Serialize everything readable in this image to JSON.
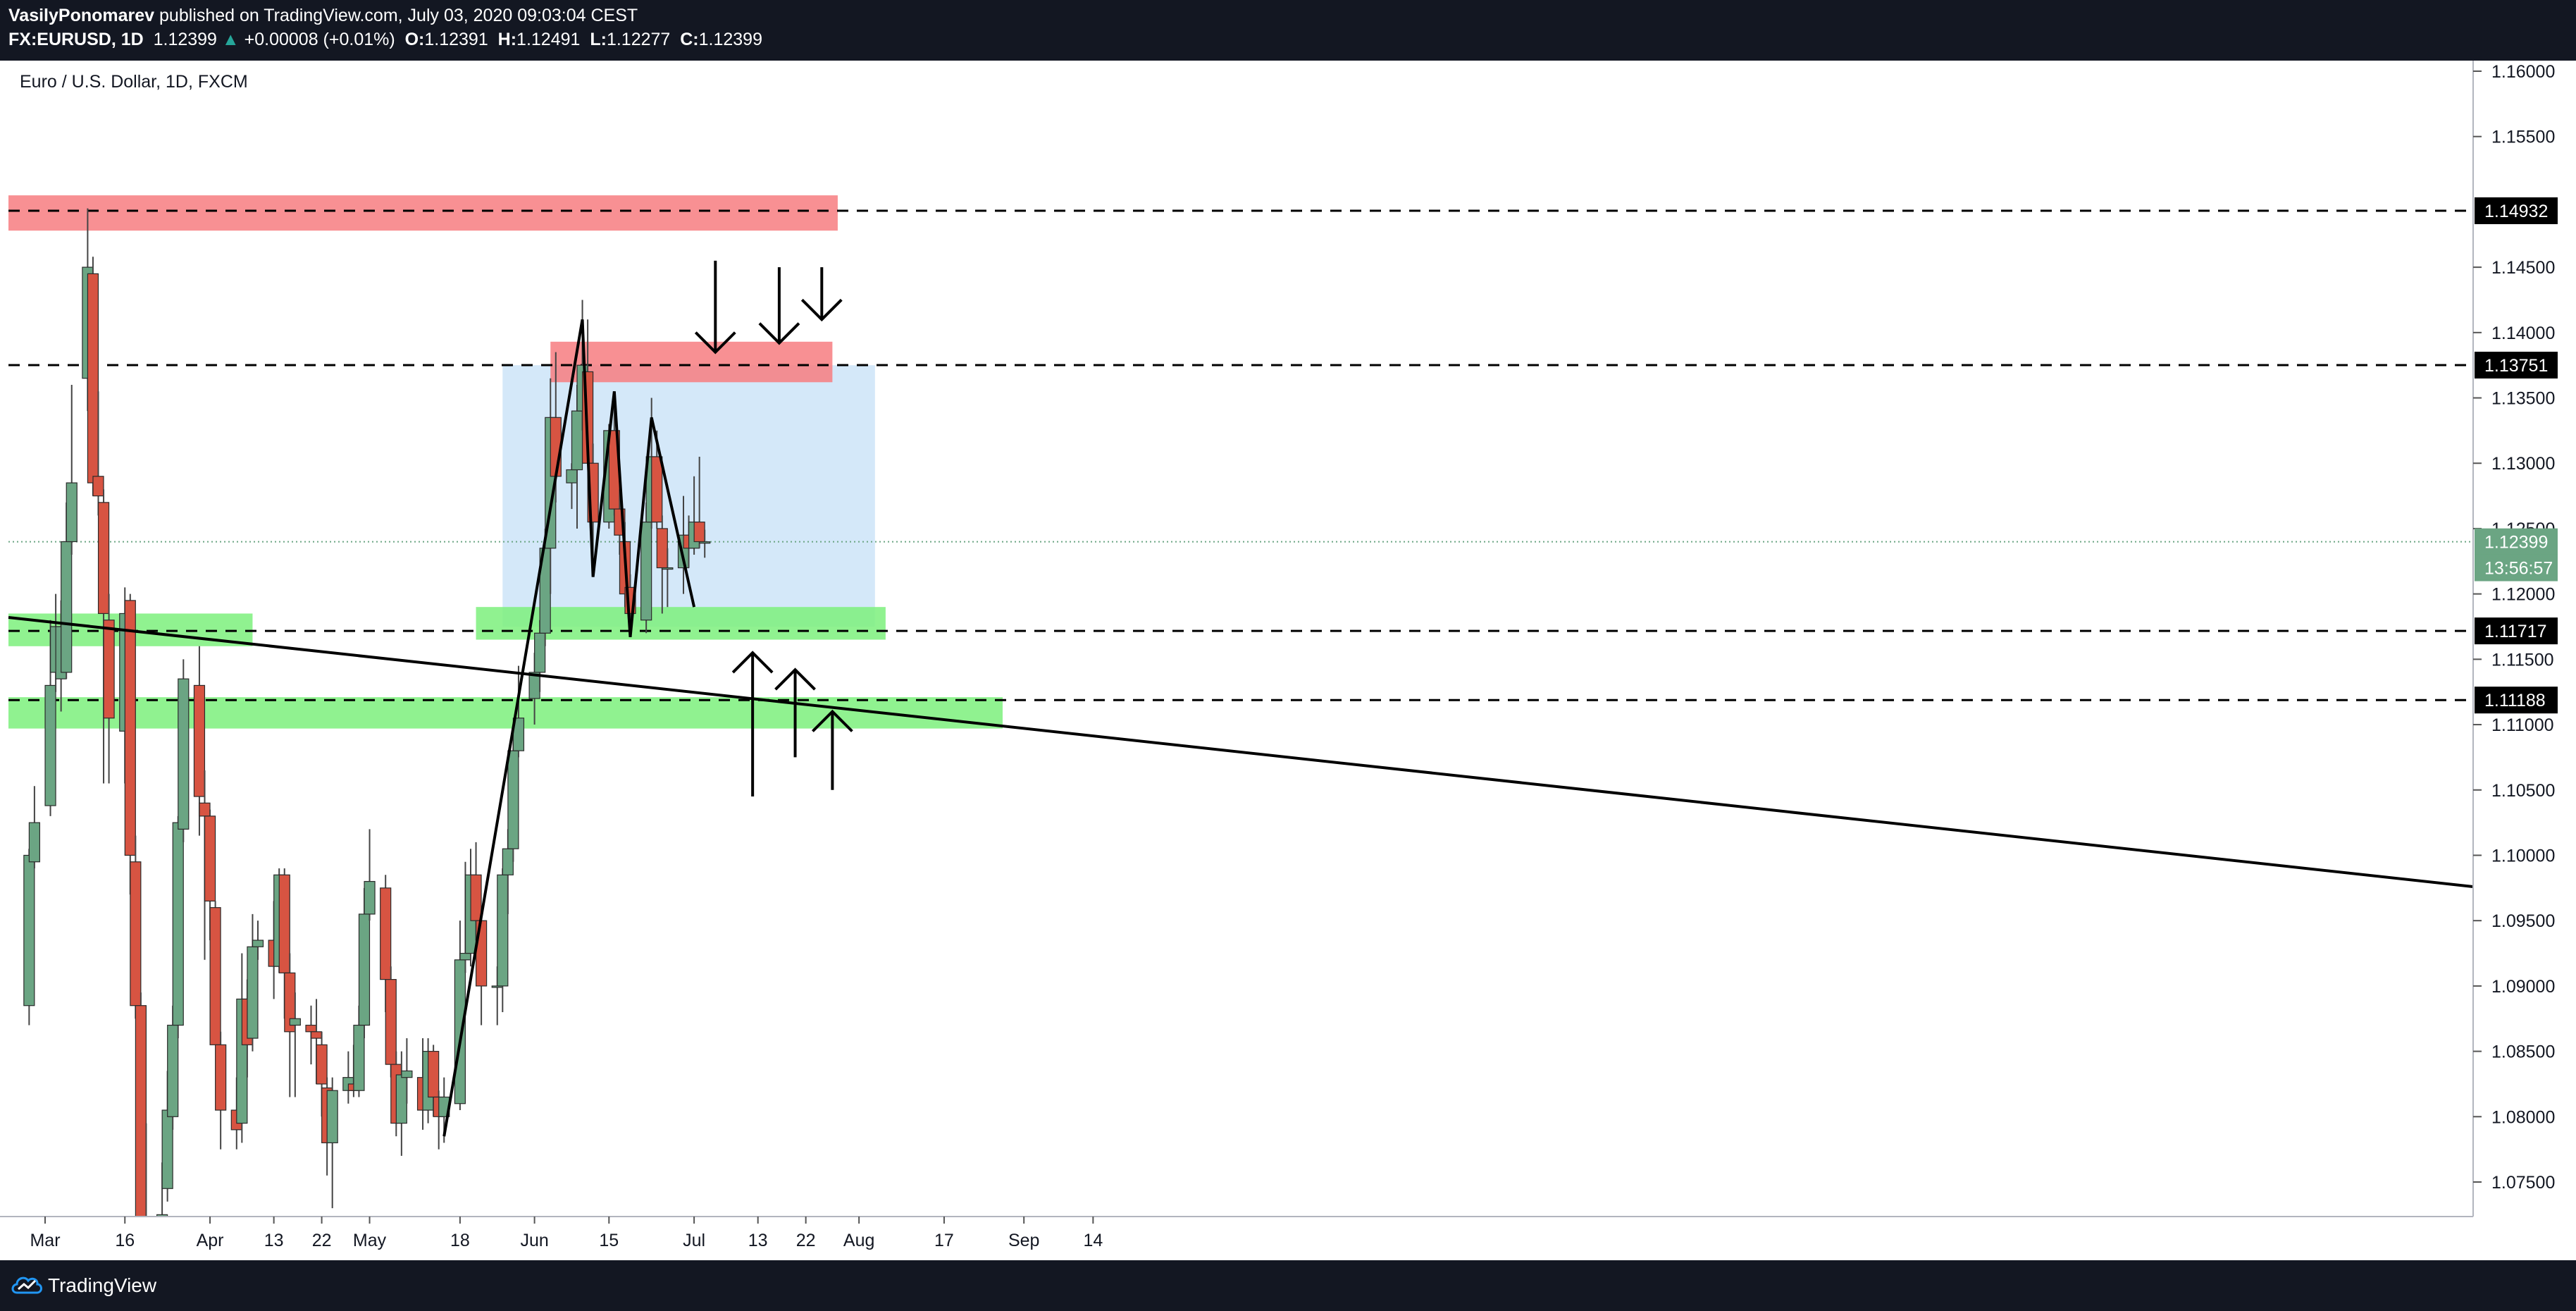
{
  "header": {
    "author": "VasilyPonomarev",
    "published": "published on TradingView.com, July 03, 2020 09:03:04 CEST",
    "symbol": "FX:EURUSD, 1D",
    "last": "1.12399",
    "change_arrow": "▲",
    "change": "+0.00008 (+0.01%)",
    "o_label": "O:",
    "o_value": "1.12391",
    "h_label": "H:",
    "h_value": "1.12491",
    "l_label": "L:",
    "l_value": "1.12277",
    "c_label": "C:",
    "c_value": "1.12399"
  },
  "chart_title": "Euro / U.S. Dollar, 1D, FXCM",
  "footer": {
    "brand": "TradingView",
    "logo_icon": "tradingview-cloud-icon"
  },
  "colors": {
    "up": "#6ba583",
    "down": "#d75442",
    "resistance_zone": "#f77c80",
    "support_zone": "#7cf07c",
    "range_box": "#b7d8f5",
    "last_price_label": "#6ba583"
  },
  "chart_data": {
    "type": "candlestick",
    "symbol": "EURUSD",
    "timeframe": "1D",
    "ylim": [
      1.0715,
      1.162
    ],
    "x_tick_labels": [
      "Mar",
      "16",
      "Apr",
      "13",
      "22",
      "May",
      "18",
      "Jun",
      "15",
      "Jul",
      "13",
      "22",
      "Aug",
      "17",
      "Sep",
      "14"
    ],
    "y_tick_labels": [
      "1.16000",
      "1.15500",
      "1.14500",
      "1.14000",
      "1.13500",
      "1.13000",
      "1.12500",
      "1.12000",
      "1.11500",
      "1.11000",
      "1.10500",
      "1.10000",
      "1.09500",
      "1.09000",
      "1.08500",
      "1.08000",
      "1.07500"
    ],
    "y_tick_values": [
      1.16,
      1.155,
      1.145,
      1.14,
      1.135,
      1.13,
      1.125,
      1.12,
      1.115,
      1.11,
      1.105,
      1.1,
      1.095,
      1.09,
      1.085,
      1.08,
      1.075
    ],
    "price_labels": [
      {
        "label": "1.14932",
        "value": 1.14932,
        "style": "level"
      },
      {
        "label": "1.13751",
        "value": 1.13751,
        "style": "level"
      },
      {
        "label": "1.12399",
        "value": 1.12399,
        "style": "last"
      },
      {
        "label": "13:56:57",
        "value": 1.122,
        "style": "countdown"
      },
      {
        "label": "1.11717",
        "value": 1.11717,
        "style": "level"
      },
      {
        "label": "1.11188",
        "value": 1.11188,
        "style": "level"
      }
    ],
    "candles": [
      {
        "date": "2020-02-27",
        "o": 1.0885,
        "h": 1.1005,
        "l": 1.087,
        "c": 1.1
      },
      {
        "date": "2020-02-28",
        "o": 1.0995,
        "h": 1.1053,
        "l": 1.099,
        "c": 1.1025
      },
      {
        "date": "2020-03-02",
        "o": 1.1038,
        "h": 1.118,
        "l": 1.103,
        "c": 1.113
      },
      {
        "date": "2020-03-03",
        "o": 1.114,
        "h": 1.12,
        "l": 1.1125,
        "c": 1.1175
      },
      {
        "date": "2020-03-04",
        "o": 1.1135,
        "h": 1.1195,
        "l": 1.111,
        "c": 1.1175
      },
      {
        "date": "2020-03-05",
        "o": 1.114,
        "h": 1.127,
        "l": 1.1135,
        "c": 1.124
      },
      {
        "date": "2020-03-06",
        "o": 1.124,
        "h": 1.136,
        "l": 1.123,
        "c": 1.1285
      },
      {
        "date": "2020-03-09",
        "o": 1.1365,
        "h": 1.1495,
        "l": 1.134,
        "c": 1.145
      },
      {
        "date": "2020-03-10",
        "o": 1.1445,
        "h": 1.1458,
        "l": 1.1275,
        "c": 1.1285
      },
      {
        "date": "2020-03-11",
        "o": 1.129,
        "h": 1.1355,
        "l": 1.126,
        "c": 1.1275
      },
      {
        "date": "2020-03-12",
        "o": 1.127,
        "h": 1.128,
        "l": 1.1055,
        "c": 1.1185
      },
      {
        "date": "2020-03-13",
        "o": 1.118,
        "h": 1.12,
        "l": 1.1055,
        "c": 1.1105
      },
      {
        "date": "2020-03-16",
        "o": 1.1095,
        "h": 1.1205,
        "l": 1.1055,
        "c": 1.1185
      },
      {
        "date": "2020-03-17",
        "o": 1.1195,
        "h": 1.12,
        "l": 1.097,
        "c": 1.1
      },
      {
        "date": "2020-03-18",
        "o": 1.0995,
        "h": 1.1015,
        "l": 1.0875,
        "c": 1.0885
      },
      {
        "date": "2020-03-19",
        "o": 1.0885,
        "h": 1.0895,
        "l": 1.0655,
        "c": 1.069
      },
      {
        "date": "2020-03-20",
        "o": 1.069,
        "h": 1.0795,
        "l": 1.0635,
        "c": 1.07
      },
      {
        "date": "2020-03-23",
        "o": 1.071,
        "h": 1.0765,
        "l": 1.0635,
        "c": 1.0725
      },
      {
        "date": "2020-03-24",
        "o": 1.0745,
        "h": 1.0835,
        "l": 1.0735,
        "c": 1.0805
      },
      {
        "date": "2020-03-25",
        "o": 1.08,
        "h": 1.0885,
        "l": 1.079,
        "c": 1.087
      },
      {
        "date": "2020-03-26",
        "o": 1.087,
        "h": 1.103,
        "l": 1.086,
        "c": 1.1025
      },
      {
        "date": "2020-03-27",
        "o": 1.102,
        "h": 1.115,
        "l": 1.101,
        "c": 1.1135
      },
      {
        "date": "2020-03-30",
        "o": 1.113,
        "h": 1.116,
        "l": 1.1015,
        "c": 1.1045
      },
      {
        "date": "2020-03-31",
        "o": 1.104,
        "h": 1.1065,
        "l": 1.092,
        "c": 1.103
      },
      {
        "date": "2020-04-01",
        "o": 1.103,
        "h": 1.1035,
        "l": 1.0935,
        "c": 1.0965
      },
      {
        "date": "2020-04-02",
        "o": 1.096,
        "h": 1.0965,
        "l": 1.086,
        "c": 1.0855
      },
      {
        "date": "2020-04-03",
        "o": 1.0855,
        "h": 1.0865,
        "l": 1.0775,
        "c": 1.0805
      },
      {
        "date": "2020-04-06",
        "o": 1.0805,
        "h": 1.083,
        "l": 1.0775,
        "c": 1.079
      },
      {
        "date": "2020-04-07",
        "o": 1.0795,
        "h": 1.0925,
        "l": 1.078,
        "c": 1.089
      },
      {
        "date": "2020-04-08",
        "o": 1.089,
        "h": 1.0905,
        "l": 1.083,
        "c": 1.0855
      },
      {
        "date": "2020-04-09",
        "o": 1.086,
        "h": 1.0955,
        "l": 1.085,
        "c": 1.093
      },
      {
        "date": "2020-04-10",
        "o": 1.093,
        "h": 1.095,
        "l": 1.092,
        "c": 1.0935
      },
      {
        "date": "2020-04-13",
        "o": 1.0935,
        "h": 1.0965,
        "l": 1.089,
        "c": 1.0915
      },
      {
        "date": "2020-04-14",
        "o": 1.0915,
        "h": 1.099,
        "l": 1.091,
        "c": 1.0985
      },
      {
        "date": "2020-04-15",
        "o": 1.0985,
        "h": 1.099,
        "l": 1.0875,
        "c": 1.091
      },
      {
        "date": "2020-04-16",
        "o": 1.091,
        "h": 1.0925,
        "l": 1.0815,
        "c": 1.0865
      },
      {
        "date": "2020-04-17",
        "o": 1.087,
        "h": 1.0895,
        "l": 1.0815,
        "c": 1.0875
      },
      {
        "date": "2020-04-20",
        "o": 1.087,
        "h": 1.0885,
        "l": 1.084,
        "c": 1.0865
      },
      {
        "date": "2020-04-21",
        "o": 1.0865,
        "h": 1.089,
        "l": 1.0825,
        "c": 1.086
      },
      {
        "date": "2020-04-22",
        "o": 1.0855,
        "h": 1.0865,
        "l": 1.08,
        "c": 1.0825
      },
      {
        "date": "2020-04-23",
        "o": 1.0822,
        "h": 1.083,
        "l": 1.0755,
        "c": 1.078
      },
      {
        "date": "2020-04-24",
        "o": 1.078,
        "h": 1.083,
        "l": 1.073,
        "c": 1.082
      },
      {
        "date": "2020-04-27",
        "o": 1.082,
        "h": 1.085,
        "l": 1.081,
        "c": 1.083
      },
      {
        "date": "2020-04-28",
        "o": 1.0825,
        "h": 1.0855,
        "l": 1.0815,
        "c": 1.082
      },
      {
        "date": "2020-04-29",
        "o": 1.082,
        "h": 1.0885,
        "l": 1.0815,
        "c": 1.087
      },
      {
        "date": "2020-04-30",
        "o": 1.087,
        "h": 1.0975,
        "l": 1.086,
        "c": 1.0955
      },
      {
        "date": "2020-05-01",
        "o": 1.0955,
        "h": 1.102,
        "l": 1.095,
        "c": 1.098
      },
      {
        "date": "2020-05-04",
        "o": 1.0975,
        "h": 1.0985,
        "l": 1.088,
        "c": 1.0905
      },
      {
        "date": "2020-05-05",
        "o": 1.0905,
        "h": 1.0915,
        "l": 1.083,
        "c": 1.084
      },
      {
        "date": "2020-05-06",
        "o": 1.084,
        "h": 1.085,
        "l": 1.0785,
        "c": 1.0795
      },
      {
        "date": "2020-05-07",
        "o": 1.0795,
        "h": 1.085,
        "l": 1.077,
        "c": 1.0832
      },
      {
        "date": "2020-05-08",
        "o": 1.083,
        "h": 1.086,
        "l": 1.081,
        "c": 1.0835
      },
      {
        "date": "2020-05-11",
        "o": 1.083,
        "h": 1.086,
        "l": 1.079,
        "c": 1.0805
      },
      {
        "date": "2020-05-12",
        "o": 1.0805,
        "h": 1.086,
        "l": 1.0795,
        "c": 1.085
      },
      {
        "date": "2020-05-13",
        "o": 1.085,
        "h": 1.0855,
        "l": 1.08,
        "c": 1.0815
      },
      {
        "date": "2020-05-14",
        "o": 1.0815,
        "h": 1.082,
        "l": 1.0775,
        "c": 1.08
      },
      {
        "date": "2020-05-15",
        "o": 1.08,
        "h": 1.083,
        "l": 1.078,
        "c": 1.0815
      },
      {
        "date": "2020-05-18",
        "o": 1.081,
        "h": 1.095,
        "l": 1.0805,
        "c": 1.092
      },
      {
        "date": "2020-05-19",
        "o": 1.092,
        "h": 1.0995,
        "l": 1.091,
        "c": 1.0925
      },
      {
        "date": "2020-05-20",
        "o": 1.0925,
        "h": 1.1005,
        "l": 1.0915,
        "c": 1.0985
      },
      {
        "date": "2020-05-21",
        "o": 1.0985,
        "h": 1.101,
        "l": 1.0935,
        "c": 1.095
      },
      {
        "date": "2020-05-22",
        "o": 1.095,
        "h": 1.096,
        "l": 1.087,
        "c": 1.09
      },
      {
        "date": "2020-05-25",
        "o": 1.09,
        "h": 1.0915,
        "l": 1.087,
        "c": 1.09
      },
      {
        "date": "2020-05-26",
        "o": 1.09,
        "h": 1.099,
        "l": 1.088,
        "c": 1.0985
      },
      {
        "date": "2020-05-27",
        "o": 1.0985,
        "h": 1.102,
        "l": 1.0955,
        "c": 1.1005
      },
      {
        "date": "2020-05-28",
        "o": 1.1005,
        "h": 1.11,
        "l": 1.0995,
        "c": 1.108
      },
      {
        "date": "2020-05-29",
        "o": 1.108,
        "h": 1.1145,
        "l": 1.1075,
        "c": 1.1105
      },
      {
        "date": "2020-06-01",
        "o": 1.112,
        "h": 1.1155,
        "l": 1.11,
        "c": 1.114
      },
      {
        "date": "2020-06-02",
        "o": 1.114,
        "h": 1.118,
        "l": 1.1125,
        "c": 1.117
      },
      {
        "date": "2020-06-03",
        "o": 1.117,
        "h": 1.125,
        "l": 1.116,
        "c": 1.1235
      },
      {
        "date": "2020-06-04",
        "o": 1.1235,
        "h": 1.1365,
        "l": 1.12,
        "c": 1.1335
      },
      {
        "date": "2020-06-05",
        "o": 1.1335,
        "h": 1.1385,
        "l": 1.127,
        "c": 1.129
      },
      {
        "date": "2020-06-08",
        "o": 1.1285,
        "h": 1.13,
        "l": 1.1265,
        "c": 1.1295
      },
      {
        "date": "2020-06-09",
        "o": 1.1295,
        "h": 1.136,
        "l": 1.125,
        "c": 1.134
      },
      {
        "date": "2020-06-10",
        "o": 1.134,
        "h": 1.1425,
        "l": 1.1325,
        "c": 1.1375
      },
      {
        "date": "2020-06-11",
        "o": 1.137,
        "h": 1.141,
        "l": 1.13,
        "c": 1.13
      },
      {
        "date": "2020-06-12",
        "o": 1.13,
        "h": 1.1315,
        "l": 1.122,
        "c": 1.1255
      },
      {
        "date": "2020-06-15",
        "o": 1.1255,
        "h": 1.133,
        "l": 1.125,
        "c": 1.1325
      },
      {
        "date": "2020-06-16",
        "o": 1.1325,
        "h": 1.135,
        "l": 1.126,
        "c": 1.1265
      },
      {
        "date": "2020-06-17",
        "o": 1.1265,
        "h": 1.128,
        "l": 1.123,
        "c": 1.1245
      },
      {
        "date": "2020-06-18",
        "o": 1.124,
        "h": 1.1255,
        "l": 1.119,
        "c": 1.12
      },
      {
        "date": "2020-06-19",
        "o": 1.1205,
        "h": 1.1215,
        "l": 1.117,
        "c": 1.1185
      },
      {
        "date": "2020-06-22",
        "o": 1.118,
        "h": 1.127,
        "l": 1.117,
        "c": 1.1255
      },
      {
        "date": "2020-06-23",
        "o": 1.1255,
        "h": 1.135,
        "l": 1.125,
        "c": 1.1305
      },
      {
        "date": "2020-06-24",
        "o": 1.1305,
        "h": 1.1325,
        "l": 1.125,
        "c": 1.1255
      },
      {
        "date": "2020-06-25",
        "o": 1.125,
        "h": 1.126,
        "l": 1.1185,
        "c": 1.122
      },
      {
        "date": "2020-06-26",
        "o": 1.122,
        "h": 1.1235,
        "l": 1.119,
        "c": 1.122
      },
      {
        "date": "2020-06-29",
        "o": 1.122,
        "h": 1.1275,
        "l": 1.12,
        "c": 1.1245
      },
      {
        "date": "2020-06-30",
        "o": 1.1245,
        "h": 1.126,
        "l": 1.122,
        "c": 1.1235
      },
      {
        "date": "2020-07-01",
        "o": 1.1235,
        "h": 1.129,
        "l": 1.123,
        "c": 1.1255
      },
      {
        "date": "2020-07-02",
        "o": 1.1255,
        "h": 1.1305,
        "l": 1.1235,
        "c": 1.124
      },
      {
        "date": "2020-07-03",
        "o": 1.12391,
        "h": 1.12491,
        "l": 1.12277,
        "c": 1.12399
      }
    ],
    "zones": [
      {
        "type": "resistance",
        "from_date": "2020-02-27",
        "to_date": "2020-07-28",
        "low": 1.1478,
        "high": 1.1505
      },
      {
        "type": "resistance",
        "from_date": "2020-06-04",
        "to_date": "2020-07-27",
        "low": 1.1362,
        "high": 1.1393
      },
      {
        "type": "range",
        "from_date": "2020-05-26",
        "to_date": "2020-08-04",
        "low": 1.1175,
        "high": 1.1375
      },
      {
        "type": "support",
        "from_date": "2020-05-21",
        "to_date": "2020-08-06",
        "low": 1.1165,
        "high": 1.119
      },
      {
        "type": "support",
        "from_date": "2020-02-27",
        "to_date": "2020-04-09",
        "low": 1.116,
        "high": 1.1185
      },
      {
        "type": "support",
        "from_date": "2020-02-27",
        "to_date": "2020-08-28",
        "low": 1.1097,
        "high": 1.1121
      }
    ],
    "levels": [
      1.14932,
      1.13751,
      1.11717,
      1.11188
    ],
    "trendline": {
      "from": {
        "date": "2020-02-27",
        "price": 1.1182
      },
      "to": {
        "date": "2020-09-19",
        "price": 1.0976
      }
    },
    "pattern_path": [
      {
        "date": "2020-05-15",
        "price": 1.0785
      },
      {
        "date": "2020-06-10",
        "price": 1.141
      },
      {
        "date": "2020-06-12",
        "price": 1.1213
      },
      {
        "date": "2020-06-16",
        "price": 1.1355
      },
      {
        "date": "2020-06-19",
        "price": 1.1167
      },
      {
        "date": "2020-06-23",
        "price": 1.1335
      },
      {
        "date": "2020-07-01",
        "price": 1.119
      }
    ],
    "arrows": [
      {
        "direction": "down",
        "date": "2020-07-05",
        "from": 1.1455,
        "to": 1.1385
      },
      {
        "direction": "down",
        "date": "2020-07-17",
        "from": 1.145,
        "to": 1.1392
      },
      {
        "direction": "down",
        "date": "2020-07-25",
        "from": 1.145,
        "to": 1.141
      },
      {
        "direction": "up",
        "date": "2020-07-12",
        "from": 1.1045,
        "to": 1.1155
      },
      {
        "direction": "up",
        "date": "2020-07-20",
        "from": 1.1075,
        "to": 1.1142
      },
      {
        "direction": "up",
        "date": "2020-07-27",
        "from": 1.105,
        "to": 1.111
      }
    ]
  }
}
